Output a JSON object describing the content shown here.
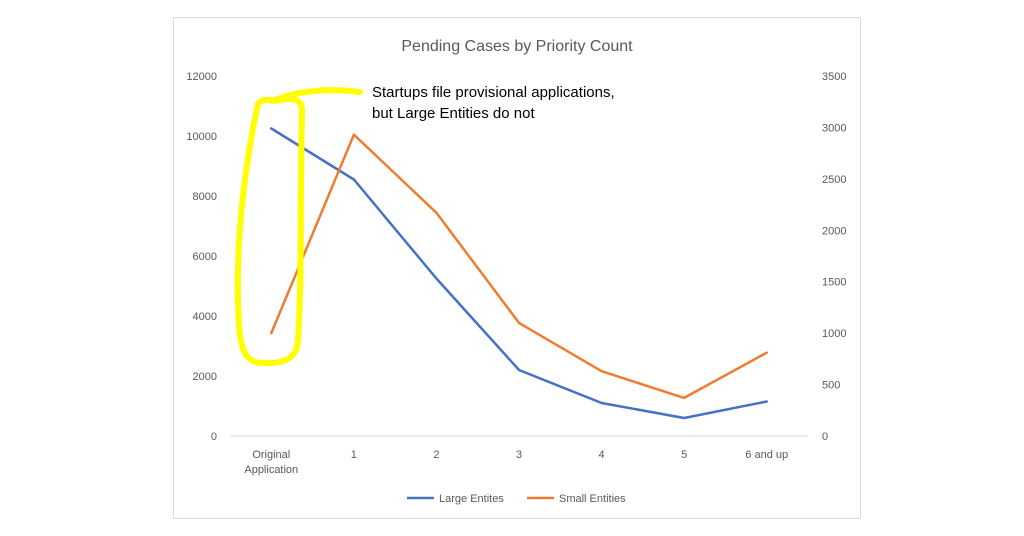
{
  "chart_data": {
    "type": "line",
    "title": "Pending Cases by Priority Count",
    "categories": [
      "Original Application",
      "1",
      "2",
      "3",
      "4",
      "5",
      "6 and up"
    ],
    "category_lines": [
      [
        "Original",
        "Application"
      ],
      [
        "1"
      ],
      [
        "2"
      ],
      [
        "3"
      ],
      [
        "4"
      ],
      [
        "5"
      ],
      [
        "6 and up"
      ]
    ],
    "y_left": {
      "ylim": [
        0,
        12000
      ],
      "ticks": [
        "0",
        "2000",
        "4000",
        "6000",
        "8000",
        "10000",
        "12000"
      ]
    },
    "y_right": {
      "ylim": [
        0,
        3500
      ],
      "ticks": [
        "0",
        "500",
        "1000",
        "1500",
        "2000",
        "2500",
        "3000",
        "3500"
      ]
    },
    "series": [
      {
        "name": "Large Entites",
        "axis": "left",
        "color": "#4472c4",
        "values": [
          10250,
          8550,
          5250,
          2200,
          1100,
          600,
          1150
        ]
      },
      {
        "name": "Small Entities",
        "axis": "right",
        "color": "#ed7d31",
        "values": [
          1000,
          2930,
          2170,
          1100,
          630,
          370,
          810
        ]
      }
    ],
    "legend_position": "bottom",
    "grid": false,
    "annotation": {
      "lines": [
        "Startups file provisional applications,",
        "but Large Entities do not"
      ],
      "highlight_color": "#ffff00",
      "highlight_target": "Original Application"
    }
  }
}
